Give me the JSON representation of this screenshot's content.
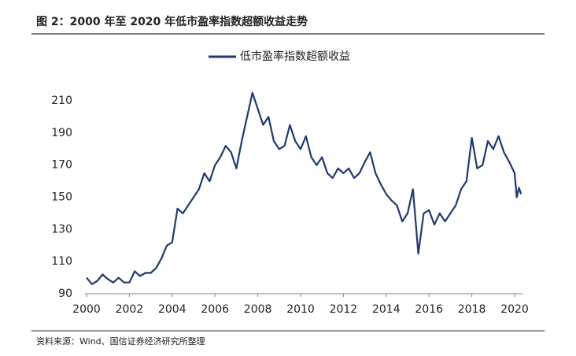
{
  "chart_data": {
    "type": "line",
    "title": "图 2：2000 年至 2020 年低市盈率指数超额收益走势",
    "source": "资料来源：Wind、国信证券经济研究所整理",
    "x": [
      2000,
      2000.25,
      2000.5,
      2000.75,
      2001,
      2001.25,
      2001.5,
      2001.75,
      2002,
      2002.25,
      2002.5,
      2002.75,
      2003,
      2003.25,
      2003.5,
      2003.75,
      2004,
      2004.25,
      2004.5,
      2004.75,
      2005,
      2005.25,
      2005.5,
      2005.75,
      2006,
      2006.25,
      2006.5,
      2006.75,
      2007,
      2007.25,
      2007.5,
      2007.75,
      2008,
      2008.25,
      2008.5,
      2008.75,
      2009,
      2009.25,
      2009.5,
      2009.75,
      2010,
      2010.25,
      2010.5,
      2010.75,
      2011,
      2011.25,
      2011.5,
      2011.75,
      2012,
      2012.25,
      2012.5,
      2012.75,
      2013,
      2013.25,
      2013.5,
      2013.75,
      2014,
      2014.25,
      2014.5,
      2014.75,
      2015,
      2015.25,
      2015.5,
      2015.75,
      2016,
      2016.25,
      2016.5,
      2016.75,
      2017,
      2017.25,
      2017.5,
      2017.75,
      2018,
      2018.25,
      2018.5,
      2018.75,
      2019,
      2019.25,
      2019.5,
      2019.75,
      2020,
      2020.1,
      2020.2,
      2020.3
    ],
    "series": [
      {
        "name": "低市盈率指数超额收益",
        "color": "#1f3a6e",
        "values": [
          100,
          96,
          98,
          102,
          99,
          97,
          100,
          97,
          97,
          104,
          101,
          103,
          103,
          106,
          112,
          120,
          122,
          143,
          140,
          145,
          150,
          155,
          165,
          160,
          170,
          175,
          182,
          178,
          168,
          185,
          200,
          215,
          205,
          195,
          200,
          185,
          180,
          182,
          195,
          185,
          180,
          188,
          175,
          170,
          175,
          165,
          162,
          168,
          165,
          168,
          162,
          165,
          172,
          178,
          165,
          158,
          152,
          148,
          145,
          135,
          140,
          155,
          115,
          140,
          142,
          133,
          140,
          135,
          140,
          145,
          155,
          160,
          187,
          168,
          170,
          185,
          180,
          188,
          178,
          172,
          165,
          150,
          156,
          152
        ]
      }
    ],
    "xlim": [
      2000,
      2020.4
    ],
    "ylim": [
      90,
      220
    ],
    "xticks": [
      2000,
      2002,
      2004,
      2006,
      2008,
      2010,
      2012,
      2014,
      2016,
      2018,
      2020
    ],
    "yticks": [
      90,
      110,
      130,
      150,
      170,
      190,
      210
    ]
  }
}
